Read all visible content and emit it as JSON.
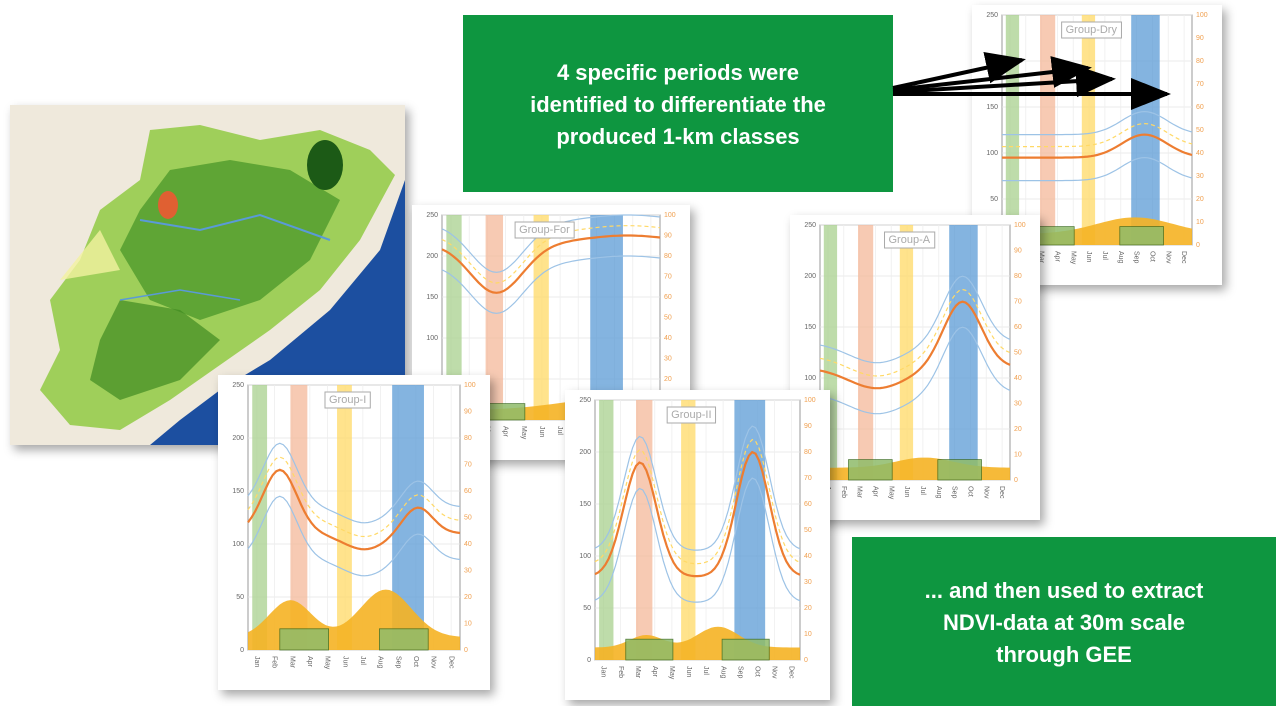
{
  "callout_top": {
    "lines": [
      "4 specific periods were",
      "identified to differentiate the",
      "produced 1-km classes"
    ]
  },
  "callout_bottom": {
    "lines": [
      "... and then used to extract",
      "NDVI-data at 30m scale",
      "through GEE"
    ]
  },
  "panels": [
    {
      "label": "Group-Dry"
    },
    {
      "label": "Group-For"
    },
    {
      "label": "Group-A"
    },
    {
      "label": "Group-I"
    },
    {
      "label": "Group-II"
    }
  ],
  "axis": {
    "left_ticks": [
      0,
      50,
      100,
      150,
      200,
      250
    ],
    "right_ticks": [
      0,
      10,
      20,
      30,
      40,
      50,
      60,
      70,
      80,
      90,
      100
    ],
    "months": [
      "Jan",
      "Feb",
      "Mar",
      "Apr",
      "May",
      "Jun",
      "Jul",
      "Aug",
      "Sep",
      "Oct",
      "Nov",
      "Dec"
    ]
  }
}
